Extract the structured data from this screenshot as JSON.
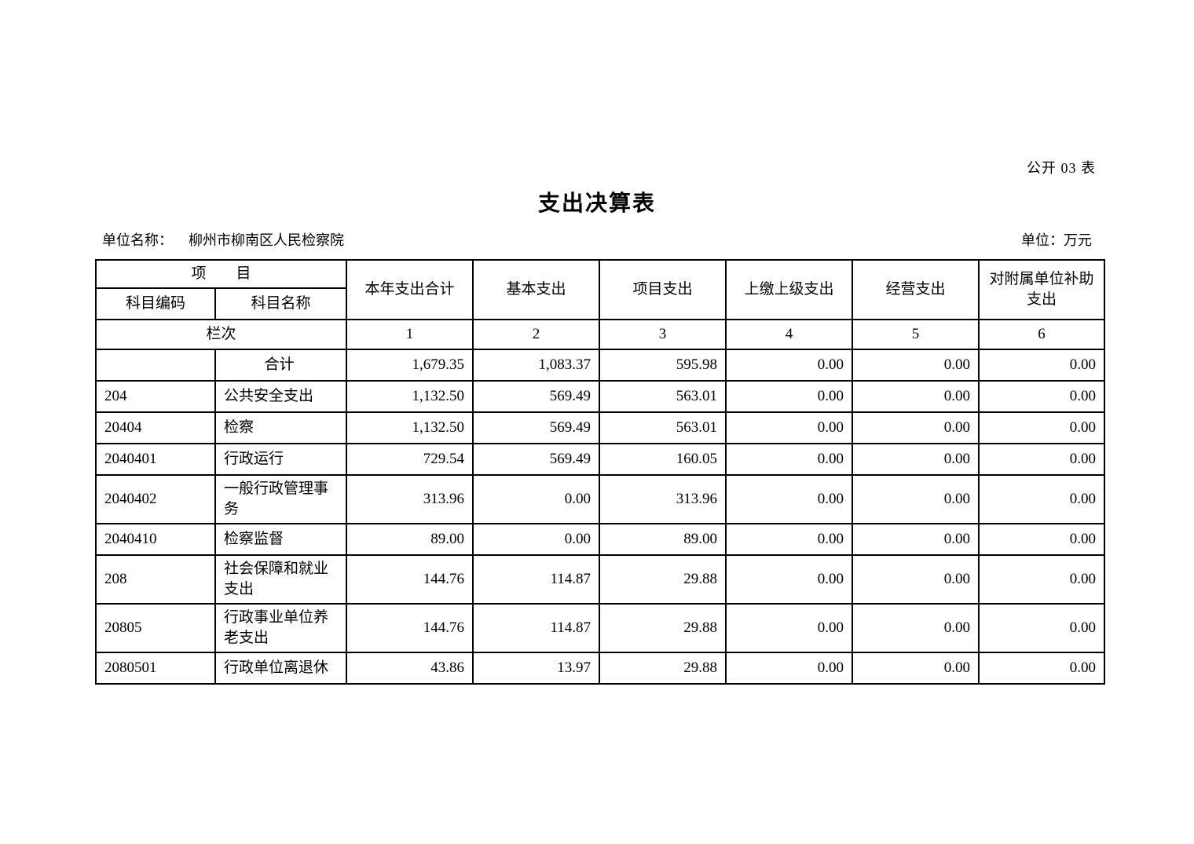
{
  "page": {
    "doc_label": "公开 03 表",
    "title": "支出决算表",
    "unit_name_label": "单位名称：",
    "unit_name": "柳州市柳南区人民检察院",
    "unit_label": "单位：万元"
  },
  "table": {
    "header": {
      "item_group": "项　　目",
      "code": "科目编码",
      "name": "科目名称",
      "columns": [
        "本年支出合计",
        "基本支出",
        "项目支出",
        "上缴上级支出",
        "经营支出",
        "对附属单位补助支出"
      ],
      "row_index_label": "栏次",
      "column_indexes": [
        "1",
        "2",
        "3",
        "4",
        "5",
        "6"
      ]
    },
    "rows": [
      {
        "code": "",
        "name": "合计",
        "is_total": true,
        "values": [
          "1,679.35",
          "1,083.37",
          "595.98",
          "0.00",
          "0.00",
          "0.00"
        ]
      },
      {
        "code": "204",
        "name": "公共安全支出",
        "values": [
          "1,132.50",
          "569.49",
          "563.01",
          "0.00",
          "0.00",
          "0.00"
        ]
      },
      {
        "code": "20404",
        "name": "检察",
        "values": [
          "1,132.50",
          "569.49",
          "563.01",
          "0.00",
          "0.00",
          "0.00"
        ]
      },
      {
        "code": "2040401",
        "name": "行政运行",
        "values": [
          "729.54",
          "569.49",
          "160.05",
          "0.00",
          "0.00",
          "0.00"
        ]
      },
      {
        "code": "2040402",
        "name": "一般行政管理事务",
        "values": [
          "313.96",
          "0.00",
          "313.96",
          "0.00",
          "0.00",
          "0.00"
        ]
      },
      {
        "code": "2040410",
        "name": "检察监督",
        "values": [
          "89.00",
          "0.00",
          "89.00",
          "0.00",
          "0.00",
          "0.00"
        ]
      },
      {
        "code": "208",
        "name": "社会保障和就业支出",
        "values": [
          "144.76",
          "114.87",
          "29.88",
          "0.00",
          "0.00",
          "0.00"
        ]
      },
      {
        "code": "20805",
        "name": "行政事业单位养老支出",
        "values": [
          "144.76",
          "114.87",
          "29.88",
          "0.00",
          "0.00",
          "0.00"
        ]
      },
      {
        "code": "2080501",
        "name": "行政单位离退休",
        "values": [
          "43.86",
          "13.97",
          "29.88",
          "0.00",
          "0.00",
          "0.00"
        ]
      }
    ]
  }
}
